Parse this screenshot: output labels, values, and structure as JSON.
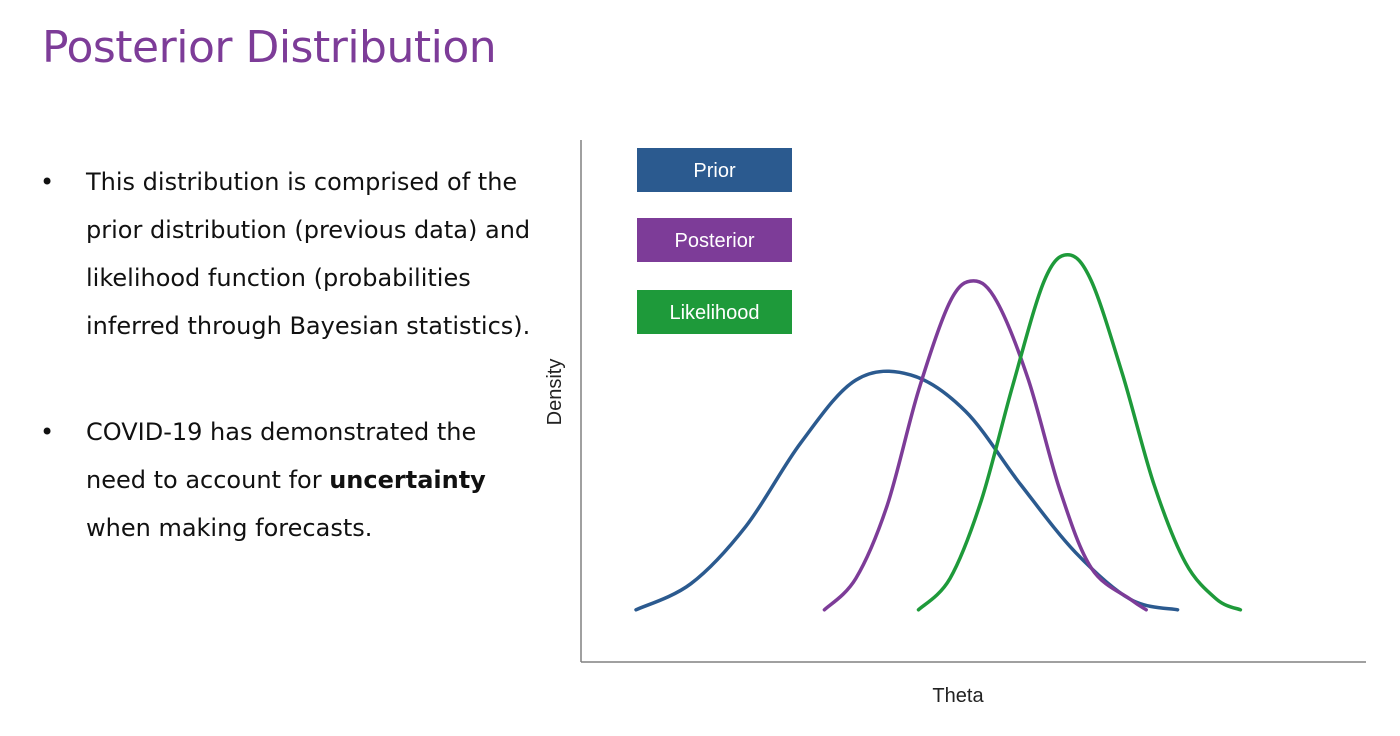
{
  "slide": {
    "title": "Posterior Distribution",
    "bullets": [
      {
        "marker": "•",
        "text": "This distribution is comprised of the prior distribution (previous data) and likelihood function (probabilities inferred through Bayesian statistics)."
      },
      {
        "marker": "•",
        "text_before": "COVID-19 has demonstrated the need to account for ",
        "text_bold": "uncertainty",
        "text_after": " when making forecasts."
      }
    ]
  },
  "colors": {
    "title": "#7d3c98",
    "prior": "#2b5a8f",
    "posterior": "#7d3c98",
    "likelihood": "#1e9a3a",
    "axis": "#808080"
  },
  "chart_data": {
    "type": "line",
    "xlabel": "Theta",
    "ylabel": "Density",
    "grid": false,
    "legend_position": "top-left",
    "xlim": [
      0,
      100
    ],
    "ylim": [
      0,
      100
    ],
    "series": [
      {
        "name": "Prior",
        "color": "#2b5a8f",
        "x": [
          7,
          14,
          21,
          28,
          35,
          42,
          49,
          56,
          63,
          70,
          76
        ],
        "y": [
          10,
          15,
          26,
          42,
          54,
          55,
          48,
          34,
          21,
          12,
          10
        ]
      },
      {
        "name": "Posterior",
        "color": "#7d3c98",
        "x": [
          31,
          35,
          39,
          43,
          47,
          50,
          53,
          57,
          61,
          65,
          70,
          72
        ],
        "y": [
          10,
          16,
          30,
          52,
          69,
          73,
          69,
          54,
          33,
          18,
          12,
          10
        ]
      },
      {
        "name": "Likelihood",
        "color": "#1e9a3a",
        "x": [
          43,
          47,
          51,
          55,
          59,
          62,
          65,
          69,
          73,
          77,
          81,
          84
        ],
        "y": [
          10,
          16,
          31,
          53,
          73,
          78,
          73,
          55,
          34,
          19,
          12,
          10
        ]
      }
    ]
  }
}
